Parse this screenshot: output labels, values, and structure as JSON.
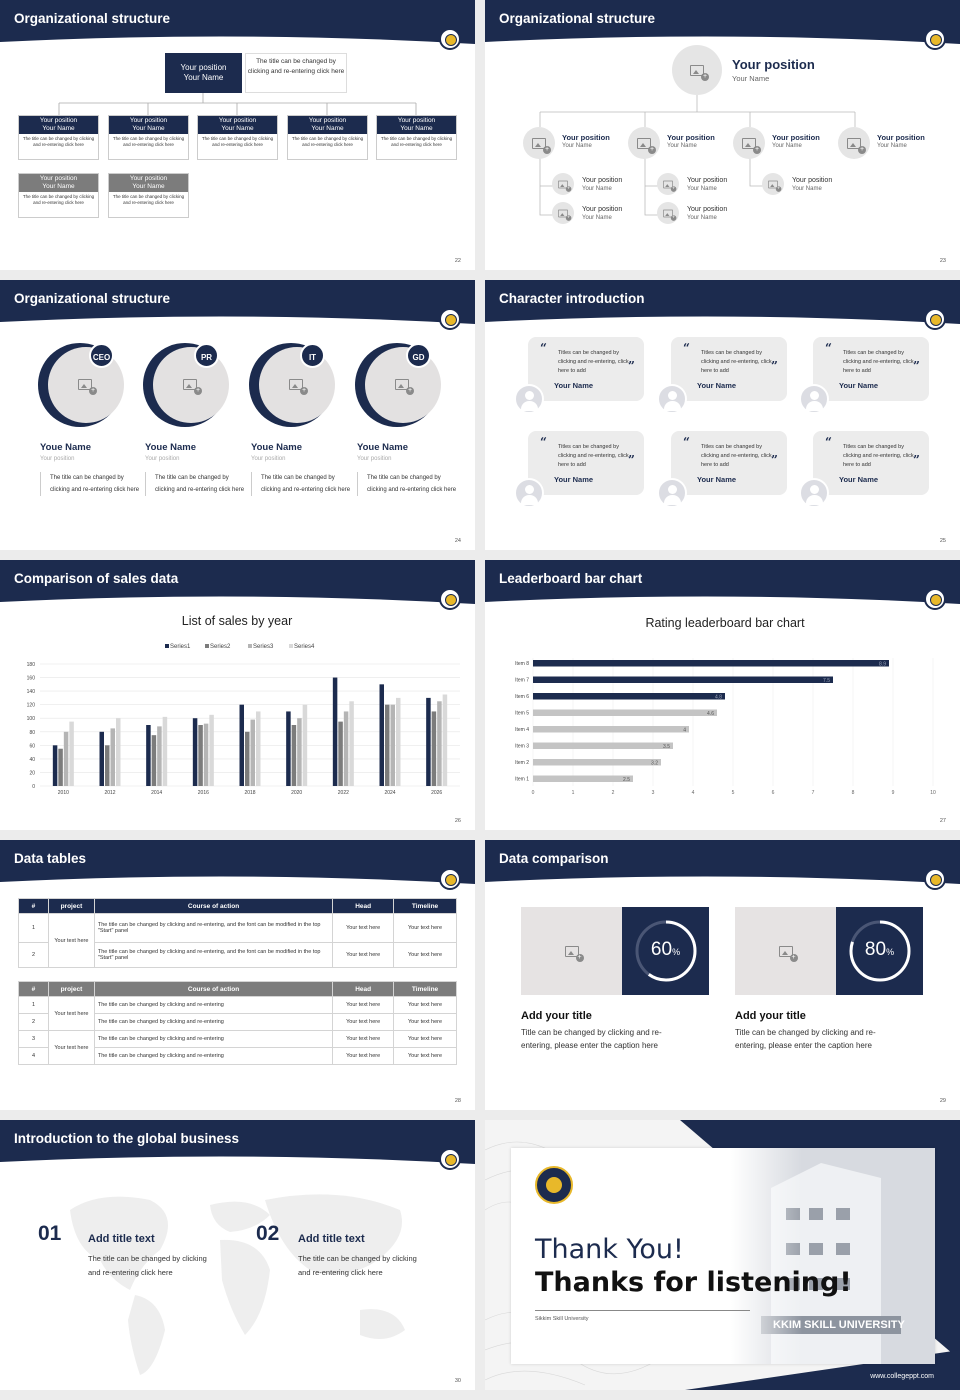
{
  "slides": {
    "s22": {
      "title": "Organizational structure",
      "page": "22",
      "top": {
        "position": "Your position",
        "name": "Your Name",
        "note": "The title can be changed by clicking and re-entering click here"
      },
      "boxes": [
        {
          "position": "Your position",
          "name": "Your Name",
          "desc": "The title can be changed by clicking and re-entering click here"
        }
      ]
    },
    "s23": {
      "title": "Organizational structure",
      "page": "23",
      "position": "Your position",
      "name": "Your Name"
    },
    "s24": {
      "title": "Organizational structure",
      "page": "24",
      "members": [
        {
          "badge": "CEO",
          "name": "Youe Name",
          "position": "Your position",
          "desc": "The title can be changed by clicking and re-entering click here"
        },
        {
          "badge": "PR",
          "name": "Youe Name",
          "position": "Your position",
          "desc": "The title can be changed by clicking and re-entering click here"
        },
        {
          "badge": "IT",
          "name": "Youe Name",
          "position": "Your position",
          "desc": "The title can be changed by clicking and re-entering click here"
        },
        {
          "badge": "GD",
          "name": "Youe Name",
          "position": "Your position",
          "desc": "The title can be changed by clicking and re-entering click here"
        }
      ]
    },
    "s25": {
      "title": "Character introduction",
      "page": "25",
      "quote": "Titles can be changed by clicking and re-entering, click here to add",
      "name": "Your Name"
    },
    "s26": {
      "title": "Comparison of sales data",
      "page": "26"
    },
    "s27": {
      "title": "Leaderboard bar chart",
      "page": "27"
    },
    "s28": {
      "title": "Data tables",
      "page": "28",
      "headers": [
        "#",
        "project",
        "Course of action",
        "Head",
        "Timeline"
      ],
      "t1_rows": [
        {
          "n": "1",
          "action": "The title can be changed by clicking and re-entering, and the font can be modified in the top \"Start\" panel",
          "head": "Your text here",
          "time": "Your text here"
        },
        {
          "n": "2",
          "action": "The title can be changed by clicking and re-entering, and the font can be modified in the top \"Start\" panel",
          "head": "Your text here",
          "time": "Your text here"
        }
      ],
      "t1_project": "Your text here",
      "t2_rows": [
        {
          "n": "1",
          "action": "The title can be changed by clicking and re-entering",
          "head": "Your text here",
          "time": "Your text here"
        },
        {
          "n": "2",
          "action": "The title can be changed by clicking and re-entering",
          "head": "Your text here",
          "time": "Your text here"
        },
        {
          "n": "3",
          "action": "The title can be changed by clicking and re-entering",
          "head": "Your text here",
          "time": "Your text here"
        },
        {
          "n": "4",
          "action": "The title can be changed by clicking and re-entering",
          "head": "Your text here",
          "time": "Your text here"
        }
      ],
      "t2_project_a": "Your text here",
      "t2_project_b": "Your text here"
    },
    "s29": {
      "title": "Data comparison",
      "page": "29",
      "items": [
        {
          "value": 60,
          "label": "60",
          "unit": "%",
          "title": "Add your title",
          "desc": "Title can be changed by clicking and re-entering, please enter the caption here"
        },
        {
          "value": 80,
          "label": "80",
          "unit": "%",
          "title": "Add your title",
          "desc": "Title can be changed by clicking and re-entering, please enter the caption here"
        }
      ]
    },
    "s30": {
      "title": "Introduction to the global business",
      "page": "30",
      "items": [
        {
          "num": "01",
          "title": "Add title text",
          "desc": "The title can be changed by clicking and re-entering click here"
        },
        {
          "num": "02",
          "title": "Add title text",
          "desc": "The title can be changed by clicking and re-entering click here"
        }
      ]
    },
    "s31": {
      "line1": "Thank You!",
      "line2": "Thanks for listening!",
      "sub": "Sikkim Skill University",
      "site": "www.collegeppt.com",
      "building_text": "KKIM SKILL UNIVERSITY"
    }
  },
  "chart_data": [
    {
      "type": "bar",
      "title": "List of sales by year",
      "categories": [
        "2010",
        "2012",
        "2014",
        "2016",
        "2018",
        "2020",
        "2022",
        "2024",
        "2026"
      ],
      "series": [
        {
          "name": "Series1",
          "values": [
            60,
            80,
            90,
            100,
            120,
            110,
            160,
            150,
            130
          ]
        },
        {
          "name": "Series2",
          "values": [
            55,
            60,
            75,
            90,
            80,
            90,
            95,
            120,
            110
          ]
        },
        {
          "name": "Series3",
          "values": [
            80,
            85,
            88,
            92,
            98,
            100,
            110,
            120,
            125
          ]
        },
        {
          "name": "Series4",
          "values": [
            95,
            100,
            102,
            105,
            110,
            120,
            125,
            130,
            135
          ]
        }
      ],
      "ylim": [
        0,
        180
      ],
      "yticks": [
        0,
        20,
        40,
        60,
        80,
        100,
        120,
        140,
        160,
        180
      ],
      "colors": [
        "#1c2b4e",
        "#7c7c7c",
        "#b5b5b5",
        "#d9d9d9"
      ],
      "legend": "top"
    },
    {
      "type": "bar",
      "orientation": "horizontal",
      "title": "Rating leaderboard bar chart",
      "categories": [
        "Item 8",
        "Item 7",
        "Item 6",
        "Item 5",
        "Item 4",
        "Item 3",
        "Item 2",
        "Item 1"
      ],
      "values": [
        8.9,
        7.5,
        4.8,
        4.6,
        3.9,
        3.5,
        3.2,
        2.5
      ],
      "value_labels": [
        "8.9",
        "7.5",
        "4.8",
        "4.6",
        "4",
        "3.5",
        "3.2",
        "2.5"
      ],
      "xlim": [
        0,
        10
      ],
      "xticks": [
        0,
        1,
        2,
        3,
        4,
        5,
        6,
        7,
        8,
        9,
        10
      ],
      "colors": [
        "#1c2b4e",
        "#c4c4c4"
      ]
    }
  ]
}
